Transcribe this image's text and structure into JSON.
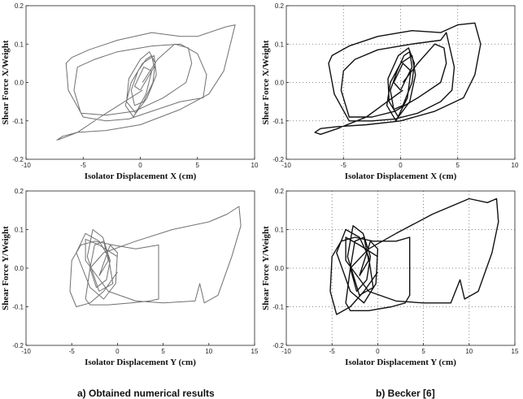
{
  "chart_data": [
    {
      "type": "line",
      "xlabel": "Isolator Displacement X (cm)",
      "ylabel": "Shear Force X/Weight",
      "xlim": [
        -10,
        10
      ],
      "ylim": [
        -0.2,
        0.2
      ],
      "xticks": [
        -10,
        -5,
        0,
        5,
        10
      ],
      "yticks": [
        -0.2,
        -0.1,
        0.0,
        0.1,
        0.2
      ],
      "xtick_labels": [
        "-10",
        "-5",
        "0",
        "5",
        "10"
      ],
      "ytick_labels": [
        "-0.2",
        "-0.1",
        "0.0",
        "0.1",
        "0.2"
      ],
      "grid": "none",
      "line_color": "#707070",
      "series": [
        {
          "x": [
            0.2,
            -3.5,
            -5.5,
            -7.0,
            -7.3,
            -6.8,
            -5.5,
            -3.0,
            0.0,
            3.5,
            6.0,
            7.3,
            8.3,
            7.5,
            5.0,
            3.5,
            1.0,
            -2.0,
            -4.5,
            -6.0,
            -6.5,
            -6.3,
            -5.0,
            -3.0,
            -1.0,
            1.0,
            3.5,
            5.5,
            5.8,
            5.0,
            3.5,
            1.0,
            -2.0,
            -4.0,
            -5.5,
            -5.8,
            -5.2,
            -3.0,
            -0.5,
            2.0,
            4.0,
            4.5,
            4.2,
            3.0,
            1.5,
            0.2
          ],
          "y": [
            -0.02,
            -0.09,
            -0.13,
            -0.147,
            -0.15,
            -0.14,
            -0.13,
            -0.125,
            -0.11,
            -0.07,
            -0.03,
            0.03,
            0.15,
            0.145,
            0.12,
            0.12,
            0.13,
            0.11,
            0.085,
            0.065,
            0.05,
            -0.02,
            -0.09,
            -0.1,
            -0.095,
            -0.075,
            -0.05,
            -0.04,
            0.02,
            0.075,
            0.1,
            0.095,
            0.08,
            0.06,
            0.04,
            -0.02,
            -0.08,
            -0.085,
            -0.075,
            -0.04,
            0.0,
            0.05,
            0.09,
            0.1,
            0.06,
            0.0
          ]
        },
        {
          "x": [
            0.0,
            1.2,
            1.0,
            0.5,
            -0.2,
            -0.8,
            -0.5,
            0.3,
            1.1,
            1.3,
            0.8,
            0.0,
            -1.0,
            -1.2,
            -0.4,
            0.6,
            1.4,
            1.2,
            0.2,
            -0.8,
            -1.3,
            -0.6,
            0.5,
            1.0,
            0.3,
            -0.5,
            0.0
          ],
          "y": [
            -0.02,
            0.04,
            0.07,
            0.06,
            0.03,
            -0.02,
            -0.06,
            -0.05,
            0.0,
            0.05,
            0.08,
            0.06,
            0.01,
            -0.05,
            -0.08,
            -0.04,
            0.02,
            0.07,
            0.05,
            0.0,
            -0.06,
            -0.09,
            -0.03,
            0.03,
            0.04,
            -0.01,
            -0.02
          ]
        }
      ]
    },
    {
      "type": "line",
      "xlabel": "Isolator Displacement X (cm)",
      "ylabel": "Shear Force X/Weight",
      "xlim": [
        -10,
        10
      ],
      "ylim": [
        -0.2,
        0.2
      ],
      "xticks": [
        -10,
        -5,
        0,
        5,
        10
      ],
      "yticks": [
        -0.2,
        -0.1,
        0.0,
        0.1,
        0.2
      ],
      "xtick_labels": [
        "-10",
        "-5",
        "0",
        "5",
        "10"
      ],
      "ytick_labels": [
        "-0.2",
        "-0.1",
        "0.0",
        "0.1",
        "0.2"
      ],
      "grid": "dotted",
      "line_color": "#111111",
      "series": [
        {
          "x": [
            0.2,
            -3.0,
            -5.5,
            -7.0,
            -7.5,
            -7.0,
            -5.5,
            -3.0,
            0.0,
            3.0,
            5.5,
            6.5,
            7.0,
            6.5,
            5.0,
            3.5,
            1.0,
            -2.0,
            -4.5,
            -6.0,
            -6.3,
            -5.8,
            -4.5,
            -2.5,
            -0.5,
            1.5,
            3.5,
            4.5,
            4.7,
            4.0,
            3.5,
            1.0,
            -2.0,
            -4.0,
            -5.0,
            -5.2,
            -4.5,
            -2.5,
            -0.5,
            1.5,
            3.5,
            4.0,
            3.8,
            3.0,
            1.5,
            0.2
          ],
          "y": [
            -0.02,
            -0.09,
            -0.12,
            -0.135,
            -0.13,
            -0.12,
            -0.115,
            -0.11,
            -0.1,
            -0.075,
            -0.04,
            0.02,
            0.1,
            0.155,
            0.15,
            0.13,
            0.135,
            0.12,
            0.095,
            0.07,
            0.05,
            -0.03,
            -0.1,
            -0.1,
            -0.095,
            -0.08,
            -0.05,
            -0.02,
            0.04,
            0.13,
            0.11,
            0.1,
            0.085,
            0.06,
            0.03,
            -0.02,
            -0.09,
            -0.09,
            -0.075,
            -0.04,
            0.0,
            0.05,
            0.09,
            0.1,
            0.05,
            0.0
          ]
        },
        {
          "x": [
            0.0,
            1.0,
            0.8,
            0.3,
            -0.3,
            -0.9,
            -0.6,
            0.2,
            1.0,
            1.2,
            0.7,
            -0.2,
            -1.1,
            -1.0,
            -0.2,
            0.8,
            1.3,
            1.0,
            0.0,
            -0.9,
            -1.2,
            -0.4,
            0.6,
            0.9,
            0.2,
            -0.6,
            0.0
          ],
          "y": [
            -0.02,
            0.04,
            0.08,
            0.07,
            0.03,
            -0.02,
            -0.07,
            -0.06,
            0.0,
            0.05,
            0.09,
            0.07,
            0.01,
            -0.05,
            -0.09,
            -0.05,
            0.02,
            0.07,
            0.05,
            0.0,
            -0.06,
            -0.1,
            -0.04,
            0.03,
            0.05,
            0.0,
            -0.02
          ]
        }
      ]
    },
    {
      "type": "line",
      "xlabel": "Isolator Displacement Y (cm)",
      "ylabel": "Shear Force Y/Weight",
      "xlim": [
        -10,
        15
      ],
      "ylim": [
        -0.2,
        0.2
      ],
      "xticks": [
        -10,
        -5,
        0,
        5,
        10,
        15
      ],
      "yticks": [
        -0.2,
        -0.1,
        0.0,
        0.1,
        0.2
      ],
      "xtick_labels": [
        "-10",
        "-5",
        "0",
        "5",
        "10",
        "15"
      ],
      "ytick_labels": [
        "-0.2",
        "-0.1",
        "0.0",
        "0.1",
        "0.2"
      ],
      "grid": "none",
      "line_color": "#707070",
      "series": [
        {
          "x": [
            0.0,
            -2.0,
            -3.5,
            -3.5,
            -1.0,
            2.0,
            5.0,
            8.5,
            9.0,
            9.5,
            11.0,
            12.5,
            13.5,
            13.3,
            12.0,
            10.0,
            6.0,
            2.0,
            -1.5,
            -3.0,
            -3.5,
            -3.0,
            -1.0,
            1.5,
            3.5,
            4.5,
            4.5,
            2.0,
            -0.5,
            -2.5,
            -4.0,
            -5.0,
            -5.2,
            -4.5,
            -3.0,
            -1.5,
            0.0
          ],
          "y": [
            0.03,
            0.06,
            0.075,
            0.02,
            -0.06,
            -0.085,
            -0.09,
            -0.085,
            -0.04,
            -0.09,
            -0.07,
            0.03,
            0.11,
            0.16,
            0.14,
            0.12,
            0.1,
            0.07,
            0.04,
            0.0,
            -0.08,
            -0.095,
            -0.095,
            -0.09,
            -0.085,
            -0.08,
            0.06,
            0.05,
            0.06,
            0.07,
            0.06,
            0.02,
            -0.06,
            -0.1,
            -0.09,
            -0.06,
            -0.01
          ]
        },
        {
          "x": [
            -2.0,
            -1.0,
            -1.5,
            -2.5,
            -3.0,
            -2.3,
            -1.2,
            -0.8,
            -1.6,
            -2.7,
            -3.3,
            -2.0,
            -0.5,
            -1.0,
            -2.0,
            -3.5,
            -4.5,
            -3.0,
            -1.5,
            -0.2,
            0.0,
            -0.8,
            -2.0
          ],
          "y": [
            -0.02,
            0.02,
            0.07,
            0.06,
            0.0,
            -0.05,
            -0.03,
            0.02,
            0.08,
            0.1,
            0.03,
            -0.06,
            -0.04,
            0.03,
            0.07,
            0.09,
            0.04,
            -0.05,
            -0.08,
            -0.04,
            0.04,
            0.06,
            -0.02
          ]
        }
      ]
    },
    {
      "type": "line",
      "xlabel": "Isolator Displacement Y (cm)",
      "ylabel": "Shear Force Y/Weight",
      "xlim": [
        -10,
        15
      ],
      "ylim": [
        -0.2,
        0.2
      ],
      "xticks": [
        -10,
        -5,
        0,
        5,
        10,
        15
      ],
      "yticks": [
        -0.2,
        -0.1,
        0.0,
        0.1,
        0.2
      ],
      "xtick_labels": [
        "-10",
        "-5",
        "0",
        "5",
        "10",
        "15"
      ],
      "ytick_labels": [
        "-0.2",
        "-0.1",
        "0.0",
        "0.1",
        "0.2"
      ],
      "grid": "dotted",
      "line_color": "#111111",
      "series": [
        {
          "x": [
            0.0,
            -2.0,
            -3.5,
            -3.5,
            -1.0,
            2.0,
            5.0,
            8.0,
            9.0,
            9.5,
            11.0,
            12.5,
            13.2,
            13.0,
            12.0,
            10.0,
            6.0,
            2.0,
            -1.0,
            -3.0,
            -3.5,
            -3.0,
            -1.0,
            1.5,
            3.0,
            3.5,
            3.5,
            2.0,
            -0.5,
            -2.5,
            -4.0,
            -5.0,
            -5.2,
            -4.5,
            -3.0,
            -1.5,
            0.0
          ],
          "y": [
            0.03,
            0.06,
            0.08,
            0.02,
            -0.06,
            -0.085,
            -0.09,
            -0.09,
            -0.03,
            -0.08,
            -0.06,
            0.04,
            0.12,
            0.18,
            0.17,
            0.18,
            0.14,
            0.09,
            0.05,
            0.0,
            -0.09,
            -0.11,
            -0.11,
            -0.1,
            -0.09,
            -0.07,
            0.08,
            0.07,
            0.07,
            0.08,
            0.07,
            0.03,
            -0.06,
            -0.12,
            -0.1,
            -0.06,
            -0.01
          ]
        },
        {
          "x": [
            -2.0,
            -1.0,
            -1.5,
            -2.5,
            -3.0,
            -2.3,
            -1.2,
            -0.8,
            -1.6,
            -2.7,
            -3.3,
            -2.0,
            -0.5,
            -1.0,
            -2.0,
            -3.5,
            -4.5,
            -3.0,
            -1.5,
            -0.2,
            0.0,
            -0.8,
            -2.0
          ],
          "y": [
            -0.02,
            0.02,
            0.08,
            0.07,
            0.0,
            -0.06,
            -0.03,
            0.03,
            0.09,
            0.11,
            0.03,
            -0.07,
            -0.05,
            0.03,
            0.08,
            0.1,
            0.04,
            -0.06,
            -0.09,
            -0.04,
            0.05,
            0.07,
            -0.02
          ]
        }
      ]
    }
  ],
  "captions": {
    "left": "a) Obtained numerical results",
    "right": "b) Becker [6]"
  }
}
